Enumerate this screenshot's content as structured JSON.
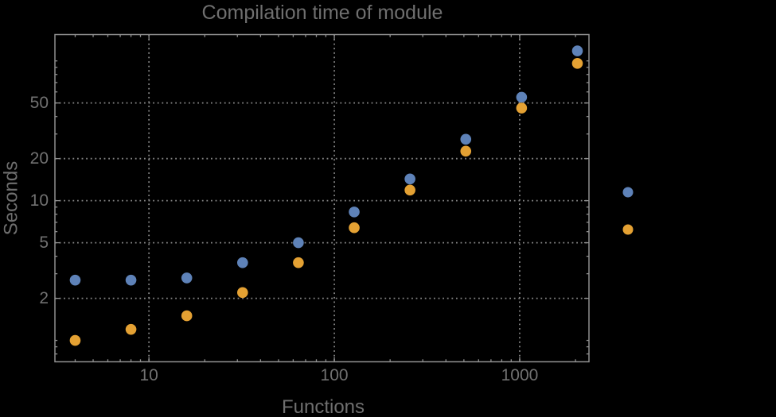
{
  "chart_data": {
    "type": "scatter",
    "title": "Compilation time of module",
    "xlabel": "Functions",
    "ylabel": "Seconds",
    "x_scale": "log",
    "y_scale": "log",
    "xlim": [
      3.11,
      2364
    ],
    "ylim": [
      0.703,
      154.4
    ],
    "grid": "dotted lines at labeled ticks only",
    "x": [
      4,
      8,
      16,
      32,
      64,
      128,
      256,
      512,
      1024,
      2048
    ],
    "series": [
      {
        "name": "series-1-blue",
        "color": "#5E82B8",
        "values": [
          2.7,
          2.7,
          2.8,
          3.6,
          5.0,
          8.3,
          14.3,
          27.5,
          55,
          118
        ]
      },
      {
        "name": "series-2-orange",
        "color": "#E4A133",
        "values": [
          1.0,
          1.2,
          1.5,
          2.2,
          3.6,
          6.4,
          11.9,
          22.6,
          46,
          96
        ]
      }
    ],
    "x_ticks": [
      {
        "v": 10,
        "label": "10"
      },
      {
        "v": 100,
        "label": "100"
      },
      {
        "v": 1000,
        "label": "1000"
      }
    ],
    "y_ticks": [
      {
        "v": 2,
        "label": "2"
      },
      {
        "v": 5,
        "label": "5"
      },
      {
        "v": 10,
        "label": "10"
      },
      {
        "v": 20,
        "label": "20"
      },
      {
        "v": 50,
        "label": "50"
      }
    ],
    "legend": {
      "position": "right-outside",
      "labels_visible_text": "",
      "markers": [
        "#5E82B8",
        "#E4A133"
      ]
    }
  },
  "colors": {
    "background": "#000000",
    "frame": "#909090",
    "grid": "#868686",
    "text": "#6f6f6f",
    "tick_text": "#717171"
  }
}
